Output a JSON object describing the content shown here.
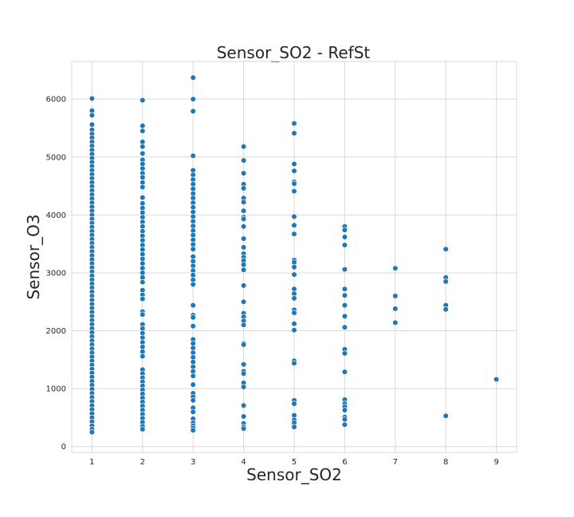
{
  "chart_data": {
    "type": "scatter",
    "title": "Sensor_SO2 - RefSt",
    "xlabel": "Sensor_SO2",
    "ylabel": "Sensor_O3",
    "xlim": [
      0.6,
      9.4
    ],
    "ylim": [
      -100,
      6650
    ],
    "xticks": [
      1,
      2,
      3,
      4,
      5,
      6,
      7,
      8,
      9
    ],
    "yticks": [
      0,
      1000,
      2000,
      3000,
      4000,
      5000,
      6000
    ],
    "grid": true,
    "marker_color": "#1f77b4",
    "series": [
      {
        "points": [
          [
            1,
            6010
          ],
          [
            1,
            5800
          ],
          [
            1,
            5720
          ],
          [
            1,
            5560
          ],
          [
            1,
            5470
          ],
          [
            1,
            5400
          ],
          [
            1,
            5330
          ],
          [
            1,
            5260
          ],
          [
            1,
            5190
          ],
          [
            1,
            5120
          ],
          [
            1,
            5050
          ],
          [
            1,
            4980
          ],
          [
            1,
            4910
          ],
          [
            1,
            4840
          ],
          [
            1,
            4770
          ],
          [
            1,
            4700
          ],
          [
            1,
            4630
          ],
          [
            1,
            4560
          ],
          [
            1,
            4490
          ],
          [
            1,
            4420
          ],
          [
            1,
            4350
          ],
          [
            1,
            4280
          ],
          [
            1,
            4210
          ],
          [
            1,
            4140
          ],
          [
            1,
            4070
          ],
          [
            1,
            4000
          ],
          [
            1,
            3930
          ],
          [
            1,
            3860
          ],
          [
            1,
            3790
          ],
          [
            1,
            3720
          ],
          [
            1,
            3650
          ],
          [
            1,
            3580
          ],
          [
            1,
            3510
          ],
          [
            1,
            3440
          ],
          [
            1,
            3370
          ],
          [
            1,
            3300
          ],
          [
            1,
            3230
          ],
          [
            1,
            3160
          ],
          [
            1,
            3090
          ],
          [
            1,
            3020
          ],
          [
            1,
            2950
          ],
          [
            1,
            2880
          ],
          [
            1,
            2810
          ],
          [
            1,
            2740
          ],
          [
            1,
            2670
          ],
          [
            1,
            2600
          ],
          [
            1,
            2530
          ],
          [
            1,
            2460
          ],
          [
            1,
            2390
          ],
          [
            1,
            2320
          ],
          [
            1,
            2250
          ],
          [
            1,
            2180
          ],
          [
            1,
            2110
          ],
          [
            1,
            2040
          ],
          [
            1,
            1970
          ],
          [
            1,
            1900
          ],
          [
            1,
            1830
          ],
          [
            1,
            1760
          ],
          [
            1,
            1690
          ],
          [
            1,
            1620
          ],
          [
            1,
            1550
          ],
          [
            1,
            1480
          ],
          [
            1,
            1410
          ],
          [
            1,
            1340
          ],
          [
            1,
            1270
          ],
          [
            1,
            1200
          ],
          [
            1,
            1130
          ],
          [
            1,
            1060
          ],
          [
            1,
            990
          ],
          [
            1,
            920
          ],
          [
            1,
            850
          ],
          [
            1,
            780
          ],
          [
            1,
            710
          ],
          [
            1,
            640
          ],
          [
            1,
            570
          ],
          [
            1,
            500
          ],
          [
            1,
            430
          ],
          [
            1,
            360
          ],
          [
            1,
            300
          ],
          [
            1,
            250
          ],
          [
            2,
            5980
          ],
          [
            2,
            5540
          ],
          [
            2,
            5450
          ],
          [
            2,
            5260
          ],
          [
            2,
            5180
          ],
          [
            2,
            5060
          ],
          [
            2,
            4950
          ],
          [
            2,
            4880
          ],
          [
            2,
            4800
          ],
          [
            2,
            4720
          ],
          [
            2,
            4650
          ],
          [
            2,
            4560
          ],
          [
            2,
            4480
          ],
          [
            2,
            4300
          ],
          [
            2,
            4200
          ],
          [
            2,
            4120
          ],
          [
            2,
            4040
          ],
          [
            2,
            3960
          ],
          [
            2,
            3880
          ],
          [
            2,
            3800
          ],
          [
            2,
            3720
          ],
          [
            2,
            3640
          ],
          [
            2,
            3560
          ],
          [
            2,
            3480
          ],
          [
            2,
            3400
          ],
          [
            2,
            3320
          ],
          [
            2,
            3240
          ],
          [
            2,
            3160
          ],
          [
            2,
            3080
          ],
          [
            2,
            3000
          ],
          [
            2,
            2920
          ],
          [
            2,
            2840
          ],
          [
            2,
            2700
          ],
          [
            2,
            2620
          ],
          [
            2,
            2550
          ],
          [
            2,
            2330
          ],
          [
            2,
            2280
          ],
          [
            2,
            2110
          ],
          [
            2,
            2040
          ],
          [
            2,
            1960
          ],
          [
            2,
            1880
          ],
          [
            2,
            1800
          ],
          [
            2,
            1720
          ],
          [
            2,
            1640
          ],
          [
            2,
            1560
          ],
          [
            2,
            1330
          ],
          [
            2,
            1260
          ],
          [
            2,
            1190
          ],
          [
            2,
            1120
          ],
          [
            2,
            1050
          ],
          [
            2,
            980
          ],
          [
            2,
            910
          ],
          [
            2,
            840
          ],
          [
            2,
            770
          ],
          [
            2,
            700
          ],
          [
            2,
            630
          ],
          [
            2,
            560
          ],
          [
            2,
            490
          ],
          [
            2,
            420
          ],
          [
            2,
            350
          ],
          [
            2,
            300
          ],
          [
            3,
            6370
          ],
          [
            3,
            6000
          ],
          [
            3,
            5790
          ],
          [
            3,
            5020
          ],
          [
            3,
            4770
          ],
          [
            3,
            4690
          ],
          [
            3,
            4610
          ],
          [
            3,
            4530
          ],
          [
            3,
            4450
          ],
          [
            3,
            4370
          ],
          [
            3,
            4290
          ],
          [
            3,
            4210
          ],
          [
            3,
            4130
          ],
          [
            3,
            4050
          ],
          [
            3,
            3970
          ],
          [
            3,
            3890
          ],
          [
            3,
            3810
          ],
          [
            3,
            3730
          ],
          [
            3,
            3650
          ],
          [
            3,
            3570
          ],
          [
            3,
            3490
          ],
          [
            3,
            3410
          ],
          [
            3,
            3280
          ],
          [
            3,
            3200
          ],
          [
            3,
            3120
          ],
          [
            3,
            3040
          ],
          [
            3,
            2960
          ],
          [
            3,
            2880
          ],
          [
            3,
            2800
          ],
          [
            3,
            2440
          ],
          [
            3,
            2270
          ],
          [
            3,
            2230
          ],
          [
            3,
            2080
          ],
          [
            3,
            1850
          ],
          [
            3,
            1780
          ],
          [
            3,
            1700
          ],
          [
            3,
            1620
          ],
          [
            3,
            1540
          ],
          [
            3,
            1460
          ],
          [
            3,
            1380
          ],
          [
            3,
            1300
          ],
          [
            3,
            1220
          ],
          [
            3,
            1070
          ],
          [
            3,
            920
          ],
          [
            3,
            860
          ],
          [
            3,
            800
          ],
          [
            3,
            670
          ],
          [
            3,
            600
          ],
          [
            3,
            480
          ],
          [
            3,
            410
          ],
          [
            3,
            360
          ],
          [
            3,
            320
          ],
          [
            3,
            280
          ],
          [
            4,
            5180
          ],
          [
            4,
            4940
          ],
          [
            4,
            4720
          ],
          [
            4,
            4530
          ],
          [
            4,
            4460
          ],
          [
            4,
            4290
          ],
          [
            4,
            4220
          ],
          [
            4,
            4070
          ],
          [
            4,
            3960
          ],
          [
            4,
            3930
          ],
          [
            4,
            3800
          ],
          [
            4,
            3590
          ],
          [
            4,
            3440
          ],
          [
            4,
            3330
          ],
          [
            4,
            3270
          ],
          [
            4,
            3210
          ],
          [
            4,
            3140
          ],
          [
            4,
            3050
          ],
          [
            4,
            2780
          ],
          [
            4,
            2500
          ],
          [
            4,
            2300
          ],
          [
            4,
            2240
          ],
          [
            4,
            2170
          ],
          [
            4,
            2100
          ],
          [
            4,
            1780
          ],
          [
            4,
            1760
          ],
          [
            4,
            1420
          ],
          [
            4,
            1300
          ],
          [
            4,
            1260
          ],
          [
            4,
            1100
          ],
          [
            4,
            1030
          ],
          [
            4,
            710
          ],
          [
            4,
            520
          ],
          [
            4,
            400
          ],
          [
            4,
            340
          ],
          [
            4,
            310
          ],
          [
            5,
            5580
          ],
          [
            5,
            5410
          ],
          [
            5,
            4880
          ],
          [
            5,
            4760
          ],
          [
            5,
            4570
          ],
          [
            5,
            4540
          ],
          [
            5,
            4410
          ],
          [
            5,
            3970
          ],
          [
            5,
            3820
          ],
          [
            5,
            3670
          ],
          [
            5,
            3220
          ],
          [
            5,
            3180
          ],
          [
            5,
            3100
          ],
          [
            5,
            2970
          ],
          [
            5,
            2720
          ],
          [
            5,
            2640
          ],
          [
            5,
            2560
          ],
          [
            5,
            2360
          ],
          [
            5,
            2310
          ],
          [
            5,
            2120
          ],
          [
            5,
            2010
          ],
          [
            5,
            1480
          ],
          [
            5,
            1440
          ],
          [
            5,
            800
          ],
          [
            5,
            740
          ],
          [
            5,
            540
          ],
          [
            5,
            460
          ],
          [
            5,
            410
          ],
          [
            5,
            340
          ],
          [
            6,
            3800
          ],
          [
            6,
            3740
          ],
          [
            6,
            3620
          ],
          [
            6,
            3480
          ],
          [
            6,
            3060
          ],
          [
            6,
            2720
          ],
          [
            6,
            2610
          ],
          [
            6,
            2440
          ],
          [
            6,
            2250
          ],
          [
            6,
            2060
          ],
          [
            6,
            1680
          ],
          [
            6,
            1610
          ],
          [
            6,
            1290
          ],
          [
            6,
            810
          ],
          [
            6,
            740
          ],
          [
            6,
            690
          ],
          [
            6,
            630
          ],
          [
            6,
            510
          ],
          [
            6,
            470
          ],
          [
            6,
            380
          ],
          [
            7,
            3080
          ],
          [
            7,
            2600
          ],
          [
            7,
            2380
          ],
          [
            7,
            2140
          ],
          [
            8,
            3410
          ],
          [
            8,
            2920
          ],
          [
            8,
            2850
          ],
          [
            8,
            2440
          ],
          [
            8,
            2370
          ],
          [
            8,
            530
          ],
          [
            9,
            1160
          ]
        ]
      }
    ]
  }
}
